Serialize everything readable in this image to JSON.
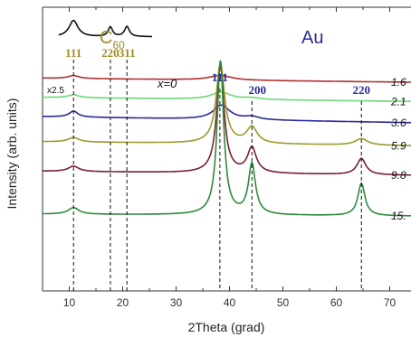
{
  "chart_data": {
    "type": "line",
    "xlabel": "2Theta (grad)",
    "ylabel": "Intensity (arb. units)",
    "xlim": [
      5,
      75
    ],
    "xticks": [
      10,
      20,
      30,
      40,
      50,
      60,
      70
    ],
    "c60_label": "C",
    "c60_subscript": "60",
    "au_label": "Au",
    "c60_peaks": [
      {
        "label": "111",
        "x": 10.8
      },
      {
        "label": "220",
        "x": 17.7
      },
      {
        "label": "311",
        "x": 20.8
      }
    ],
    "au_peaks": [
      {
        "label": "111",
        "x": 38.2
      },
      {
        "label": "200",
        "x": 44.2
      },
      {
        "label": "220",
        "x": 64.7
      }
    ],
    "x_zero_label": "x=0",
    "scale_label": "x2.5",
    "series": [
      {
        "name": "x=0",
        "color": "#111111",
        "x_range": [
          8,
          25.5
        ],
        "offset": 9.0,
        "baseline_slope": 0.0,
        "peaks": [
          [
            10.8,
            0.55,
            1.0
          ],
          [
            17.7,
            0.32,
            0.5
          ],
          [
            20.8,
            0.34,
            0.55
          ]
        ]
      },
      {
        "name": "1.6",
        "color": "#b03030",
        "x_range": [
          5,
          75
        ],
        "offset": 7.6,
        "baseline_slope": -0.002,
        "peaks": [
          [
            10.8,
            0.1,
            1.2
          ],
          [
            38.3,
            0.16,
            2.5
          ]
        ]
      },
      {
        "name": "2.1",
        "color": "#6fd67a",
        "x_range": [
          5,
          75
        ],
        "offset": 6.95,
        "baseline_slope": -0.002,
        "peaks": [
          [
            10.8,
            0.1,
            1.2
          ],
          [
            38.4,
            0.24,
            2.2
          ],
          [
            44.2,
            0.05,
            1.8
          ]
        ]
      },
      {
        "name": "3.6",
        "color": "#2a2a9a",
        "x_range": [
          5,
          75
        ],
        "offset": 6.3,
        "baseline_slope": -0.003,
        "peaks": [
          [
            10.8,
            0.2,
            1.0
          ],
          [
            38.5,
            0.48,
            1.9
          ],
          [
            44.2,
            0.1,
            1.6
          ]
        ]
      },
      {
        "name": "5.9",
        "color": "#9a9a2a",
        "x_range": [
          5,
          75
        ],
        "offset": 5.45,
        "baseline_slope": -0.002,
        "peaks": [
          [
            10.8,
            0.15,
            1.2
          ],
          [
            38.3,
            2.7,
            0.95
          ],
          [
            44.2,
            0.55,
            1.2
          ],
          [
            64.7,
            0.22,
            1.4
          ]
        ]
      },
      {
        "name": "9.8",
        "color": "#7a2030",
        "x_range": [
          5,
          75
        ],
        "offset": 4.45,
        "baseline_slope": -0.002,
        "peaks": [
          [
            10.8,
            0.18,
            1.2
          ],
          [
            38.3,
            3.6,
            0.85
          ],
          [
            44.2,
            0.85,
            1.0
          ],
          [
            64.7,
            0.55,
            1.0
          ]
        ]
      },
      {
        "name": "15.",
        "color": "#2e8b3c",
        "x_range": [
          5,
          75
        ],
        "offset": 3.0,
        "baseline_slope": -0.001,
        "peaks": [
          [
            10.8,
            0.22,
            1.2
          ],
          [
            38.3,
            5.2,
            0.75
          ],
          [
            44.2,
            1.7,
            0.8
          ],
          [
            64.7,
            1.1,
            0.8
          ]
        ]
      }
    ]
  }
}
